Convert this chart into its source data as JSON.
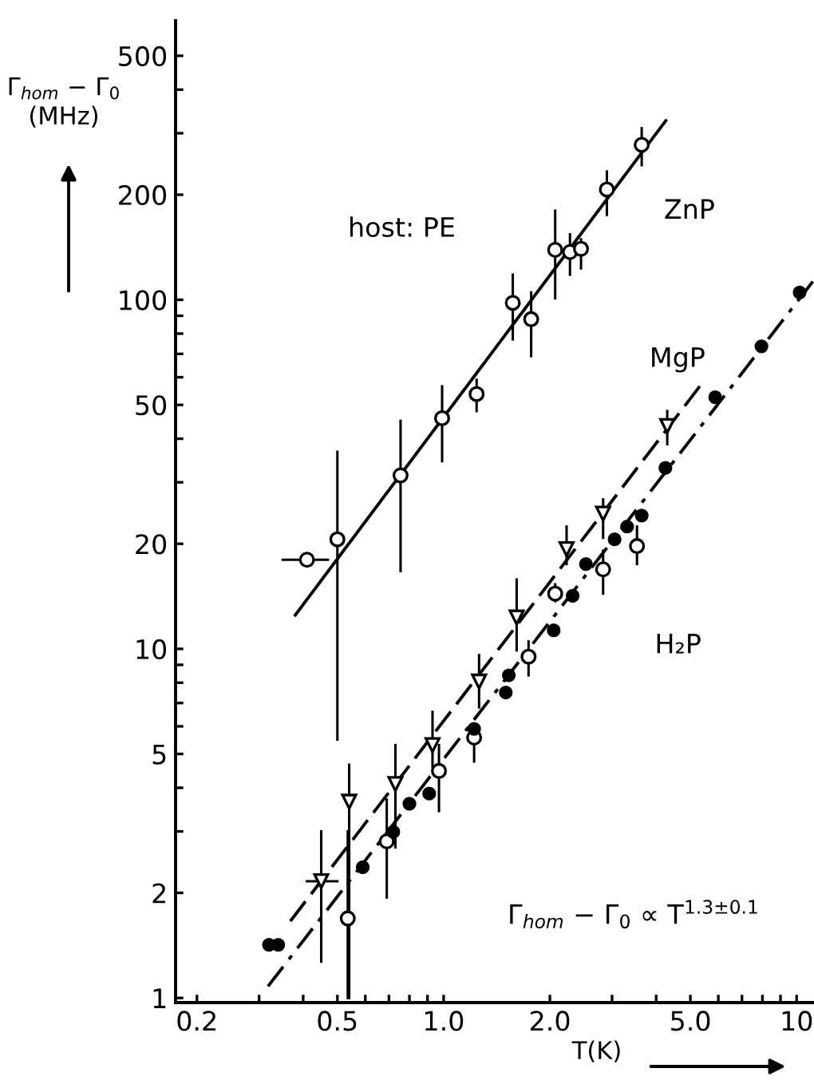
{
  "chart_data": {
    "type": "scatter",
    "log": "xy",
    "xlabel": "T(K)",
    "ylabel": "Γ$_{hom}$ − Γ$_{0}$\n(MHz)",
    "annotations": [
      "host: PE",
      "Γ$_{hom}$ − Γ$_{0}$ ∝ T$^{1.3±0.1}$"
    ],
    "xlim": [
      0.174,
      11.2
    ],
    "ylim": [
      0.97,
      630
    ],
    "xticks": [
      {
        "value": 0.2,
        "label": "0.2"
      },
      {
        "value": 0.3,
        "label": null
      },
      {
        "value": 0.4,
        "label": null
      },
      {
        "value": 0.5,
        "label": "0.5"
      },
      {
        "value": 0.6,
        "label": null
      },
      {
        "value": 0.7,
        "label": null
      },
      {
        "value": 0.8,
        "label": null
      },
      {
        "value": 0.9,
        "label": null
      },
      {
        "value": 1.0,
        "label": "1.0"
      },
      {
        "value": 2.0,
        "label": "2.0"
      },
      {
        "value": 3,
        "label": null
      },
      {
        "value": 4,
        "label": null
      },
      {
        "value": 5.0,
        "label": "5.0"
      },
      {
        "value": 6,
        "label": null
      },
      {
        "value": 7,
        "label": null
      },
      {
        "value": 8,
        "label": null
      },
      {
        "value": 9,
        "label": null
      },
      {
        "value": 10,
        "label": "10"
      }
    ],
    "yticks": [
      1,
      2,
      {
        "value": 3,
        "label": null
      },
      {
        "value": 4,
        "label": null
      },
      5,
      {
        "value": 6,
        "label": null
      },
      {
        "value": 7,
        "label": null
      },
      {
        "value": 8,
        "label": null
      },
      {
        "value": 9,
        "label": null
      },
      10,
      20,
      {
        "value": 30,
        "label": null
      },
      {
        "value": 40,
        "label": null
      },
      50,
      {
        "value": 60,
        "label": null
      },
      {
        "value": 70,
        "label": null
      },
      {
        "value": 80,
        "label": null
      },
      {
        "value": 90,
        "label": null
      },
      100,
      200,
      {
        "value": 300,
        "label": null
      },
      {
        "value": 400,
        "label": null
      },
      500
    ],
    "grid": false,
    "legend": false,
    "series": [
      {
        "name": "ZnP",
        "marker": "circle",
        "color": "#ffffff",
        "x": [
          0.41,
          0.5,
          0.755,
          0.99,
          1.24,
          1.57,
          1.77,
          2.07,
          2.28,
          2.45,
          2.9,
          3.64
        ],
        "values": [
          18,
          20.6,
          31.4,
          45.8,
          53.7,
          98,
          88,
          139,
          137,
          140,
          207,
          278
        ],
        "errors": [
          null,
          [
            5.5,
            36.7
          ],
          [
            16.7,
            45
          ],
          [
            34.5,
            56.5
          ],
          [
            48,
            59
          ],
          [
            77,
            118
          ],
          [
            69,
            105
          ],
          [
            101,
            180
          ],
          [
            118,
            154
          ],
          [
            123,
            149
          ],
          [
            175,
            233
          ],
          [
            243,
            310
          ]
        ],
        "xerrors": [
          [
            0.35,
            0.47
          ],
          null,
          null,
          null,
          null,
          null,
          null,
          null,
          null,
          null,
          null,
          null
        ]
      },
      {
        "name": "MgP",
        "marker": "triangle",
        "color": "#ffffff",
        "x": [
          0.45,
          0.54,
          0.73,
          0.93,
          1.26,
          1.61,
          2.23,
          2.83,
          4.3
        ],
        "values": [
          2.16,
          3.65,
          4.1,
          5.3,
          8.06,
          12.3,
          19.3,
          24.4,
          43.5
        ],
        "errors": [
          [
            1.27,
            3.0
          ],
          [
            1.0,
            4.66
          ],
          [
            2.7,
            5.3
          ],
          [
            4.6,
            6.6
          ],
          [
            6.8,
            9.6
          ],
          [
            9.9,
            15.8
          ],
          [
            17.5,
            22.4
          ],
          [
            20.8,
            26.8
          ],
          [
            38.6,
            48
          ]
        ],
        "xerrors": [
          [
            0.41,
            0.5
          ],
          null,
          null,
          null,
          null,
          null,
          null,
          null,
          null
        ]
      },
      {
        "name": "H₂P",
        "marker": "circle",
        "color": "#ffffff",
        "x": [
          0.535,
          0.69,
          0.97,
          1.22,
          1.74,
          2.07,
          2.83,
          3.53
        ],
        "values": [
          1.69,
          2.81,
          4.47,
          5.57,
          9.5,
          14.4,
          16.9,
          19.7
        ],
        "errors": [
          [
            1.0,
            3.0
          ],
          [
            1.94,
            3.7
          ],
          [
            3.43,
            5.3
          ],
          [
            4.76,
            6.1
          ],
          [
            8.4,
            10.5
          ],
          [
            13.7,
            15.3
          ],
          [
            14.4,
            19.1
          ],
          [
            17.5,
            22.4
          ]
        ]
      },
      {
        "marker": "circle",
        "color": "#000000",
        "x": [
          0.32,
          0.34,
          0.59,
          0.72,
          0.8,
          0.91,
          1.22,
          1.5,
          1.53,
          2.05,
          2.32,
          2.53,
          3.05,
          3.31,
          3.64,
          4.25,
          5.88,
          7.95,
          10.2
        ],
        "values": [
          1.42,
          1.42,
          2.37,
          2.99,
          3.6,
          3.85,
          5.9,
          7.5,
          8.4,
          11.3,
          14.2,
          17.5,
          20.6,
          22.4,
          24.1,
          33,
          52.6,
          73.6,
          105
        ]
      },
      {
        "type": "line",
        "marker": "none",
        "line_style": "solid",
        "color": "#000000",
        "x": [
          0.38,
          4.26
        ],
        "values": [
          12.5,
          326
        ]
      },
      {
        "type": "line",
        "marker": "none",
        "line_style": "dashed",
        "color": "#000000",
        "x": [
          0.368,
          5.35
        ],
        "values": [
          1.66,
          57
        ]
      },
      {
        "type": "line",
        "marker": "none",
        "line_style": "dashdot",
        "color": "#000000",
        "x": [
          0.318,
          11.2
        ],
        "values": [
          1.08,
          114
        ]
      }
    ]
  }
}
